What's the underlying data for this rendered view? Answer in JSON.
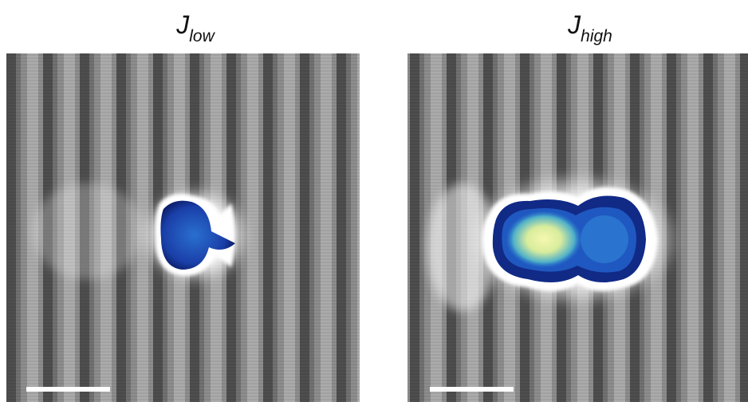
{
  "panels": [
    {
      "title": {
        "main": "J",
        "sub": "low"
      }
    },
    {
      "title": {
        "main": "J",
        "sub": "high"
      }
    }
  ]
}
